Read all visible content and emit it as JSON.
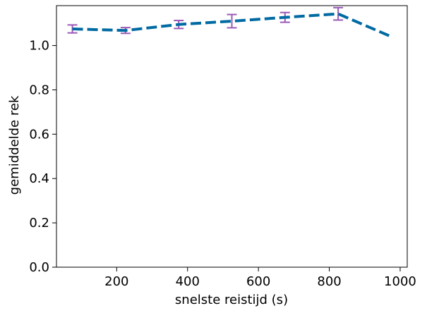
{
  "chart_data": {
    "type": "line",
    "title": "",
    "xlabel": "snelste reistijd (s)",
    "ylabel": "gemiddelde rek",
    "xlim": [
      30,
      1020
    ],
    "ylim": [
      0.0,
      1.18
    ],
    "xticks": [
      200,
      400,
      600,
      800,
      1000
    ],
    "xtick_labels": [
      "200",
      "400",
      "600",
      "800",
      "1000"
    ],
    "yticks": [
      0.0,
      0.2,
      0.4,
      0.6,
      0.8,
      1.0
    ],
    "ytick_labels": [
      "0.0",
      "0.2",
      "0.4",
      "0.6",
      "0.8",
      "1.0"
    ],
    "grid": false,
    "series": [
      {
        "line_color": "#006aa3",
        "line_style": "dashed",
        "errorbar_color": "#9b59b6",
        "x": [
          75,
          225,
          375,
          525,
          675,
          825,
          975
        ],
        "y": [
          1.075,
          1.068,
          1.095,
          1.11,
          1.127,
          1.143,
          1.04
        ],
        "yerr": [
          0.018,
          0.013,
          0.018,
          0.03,
          0.022,
          0.028,
          null
        ]
      }
    ]
  }
}
